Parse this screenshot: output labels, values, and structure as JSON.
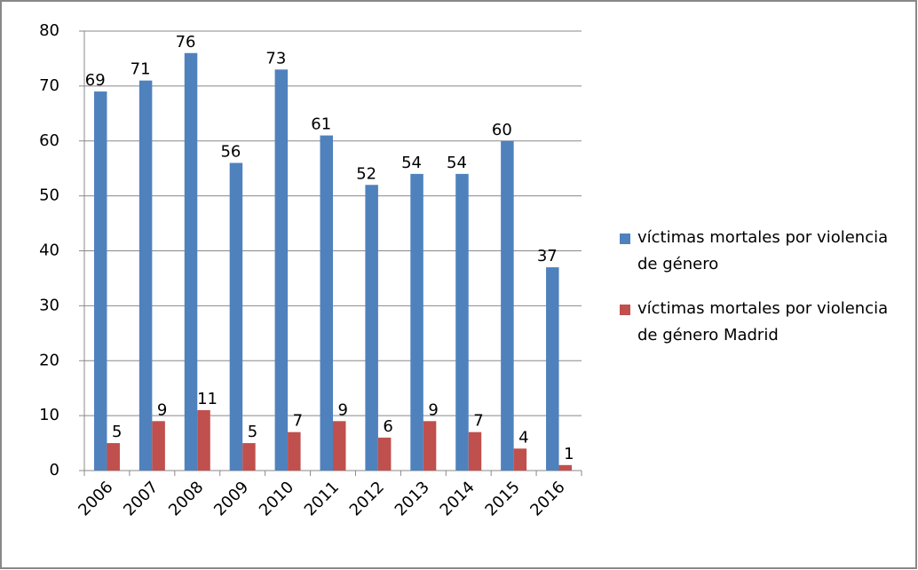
{
  "chart_data": {
    "type": "bar",
    "categories": [
      "2006",
      "2007",
      "2008",
      "2009",
      "2010",
      "2011",
      "2012",
      "2013",
      "2014",
      "2015",
      "2016"
    ],
    "series": [
      {
        "name": "víctimas mortales por violencia de género",
        "color": "#4f81bd",
        "values": [
          69,
          71,
          76,
          56,
          73,
          61,
          52,
          54,
          54,
          60,
          37
        ]
      },
      {
        "name": "víctimas mortales por violencia de género Madrid",
        "color": "#c0504d",
        "values": [
          5,
          9,
          11,
          5,
          7,
          9,
          6,
          9,
          7,
          4,
          1
        ]
      }
    ],
    "ylim": [
      0,
      80
    ],
    "yticks": [
      0,
      10,
      20,
      30,
      40,
      50,
      60,
      70,
      80
    ],
    "grid": true,
    "legend": "right"
  }
}
